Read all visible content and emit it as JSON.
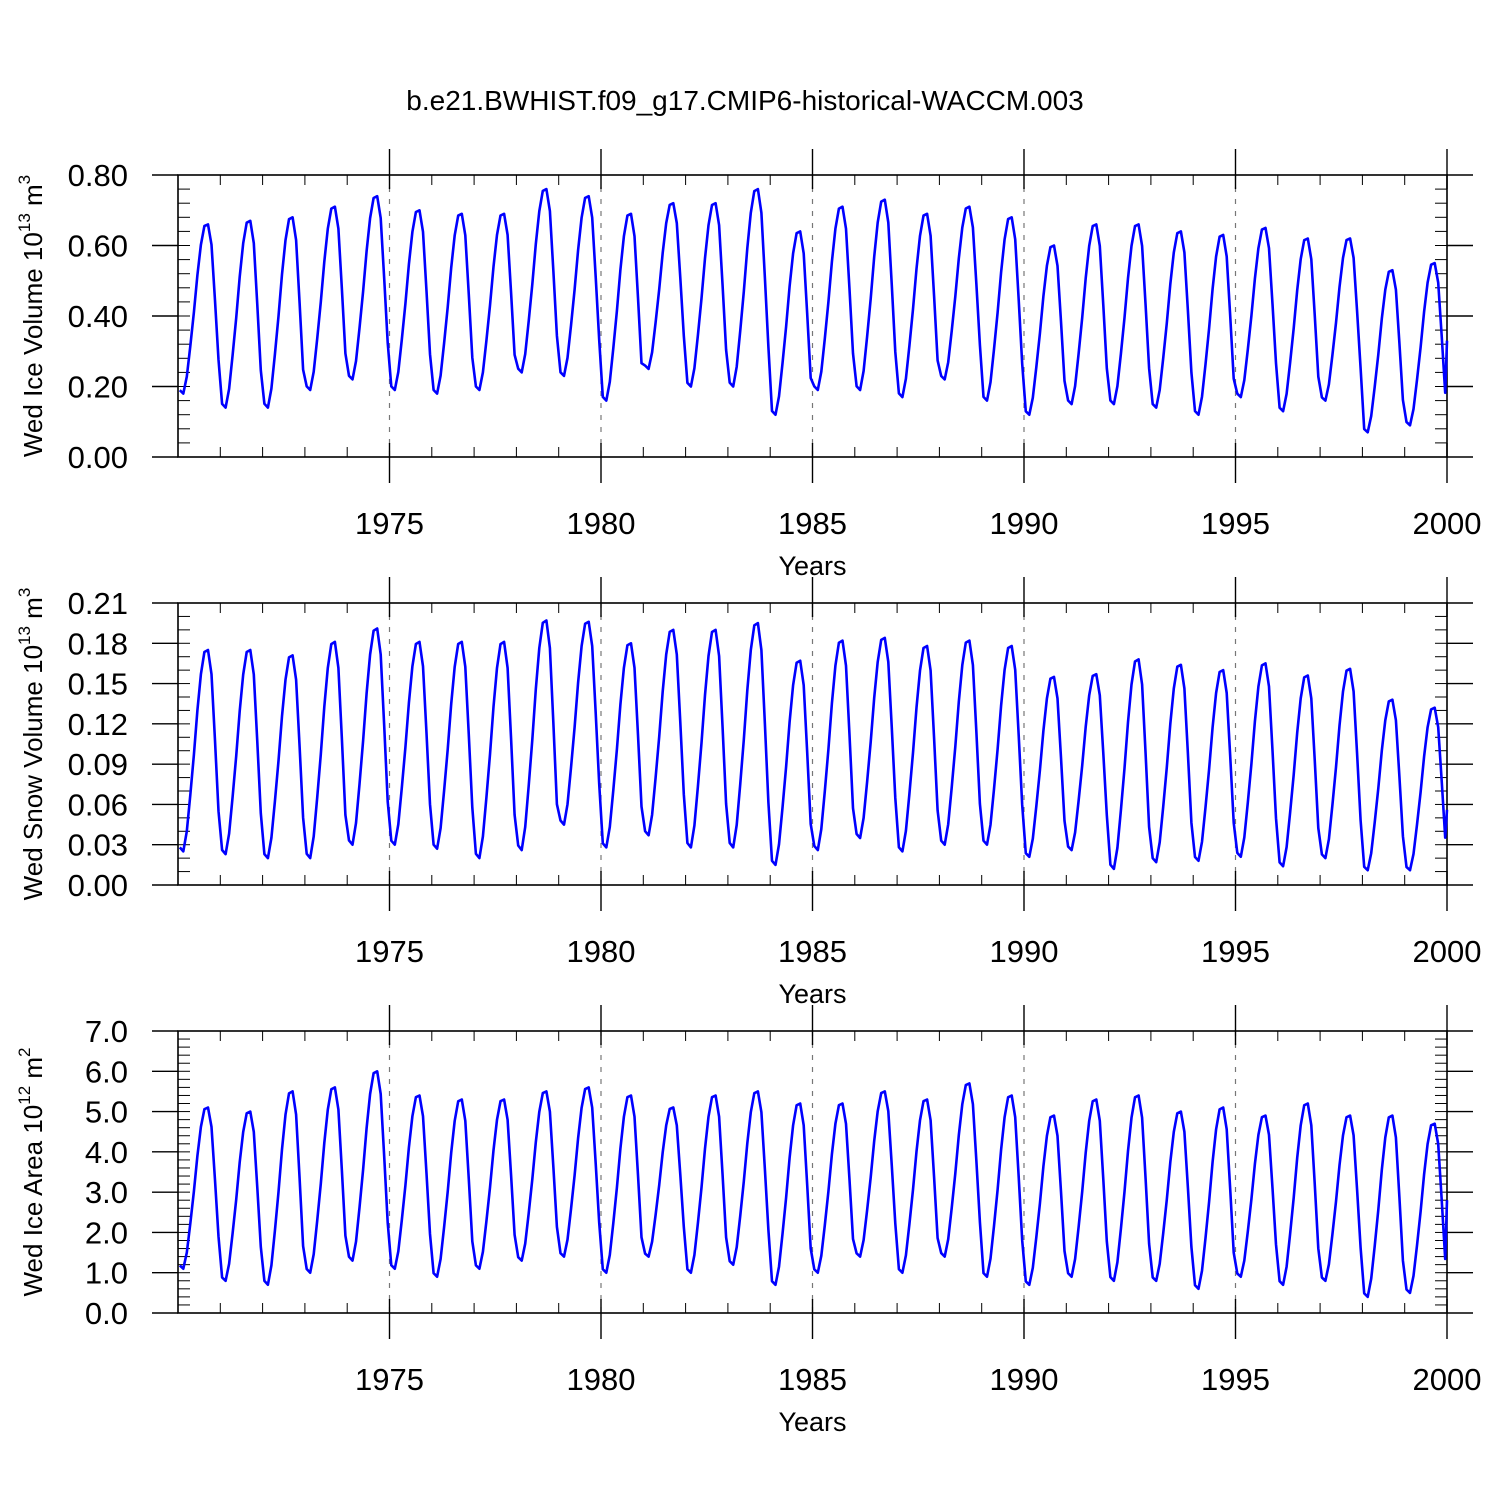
{
  "title": "b.e21.BWHIST.f09_g17.CMIP6-historical-WACCM.003",
  "chart_data": [
    {
      "type": "line",
      "ylabel": "Wed Ice Volume 10¹³ m³",
      "ylabel_main": "Wed Ice Volume 10",
      "ylabel_exp": "13",
      "ylabel_unit": " m",
      "ylabel_unit_exp": "3",
      "xlabel": "Years",
      "xlim": [
        1970.0,
        2000.0
      ],
      "ylim": [
        0.0,
        0.8
      ],
      "xticks": [
        1975,
        1980,
        1985,
        1990,
        1995,
        2000
      ],
      "xtick_labels": [
        "1975",
        "1980",
        "1985",
        "1990",
        "1995",
        "2000"
      ],
      "yticks": [
        0.0,
        0.2,
        0.4,
        0.6,
        0.8
      ],
      "ytick_labels": [
        "0.00",
        "0.20",
        "0.40",
        "0.60",
        "0.80"
      ],
      "yminor_step": 0.04,
      "series_color": "#0000ff",
      "start_year": 1970.0,
      "months_per_year": 12,
      "annual_max": [
        0.66,
        0.67,
        0.68,
        0.71,
        0.74,
        0.7,
        0.69,
        0.69,
        0.76,
        0.74,
        0.69,
        0.72,
        0.72,
        0.76,
        0.64,
        0.71,
        0.73,
        0.69,
        0.71,
        0.68,
        0.6,
        0.66,
        0.66,
        0.64,
        0.63,
        0.65,
        0.62,
        0.62,
        0.53,
        0.55
      ],
      "annual_min": [
        0.18,
        0.14,
        0.14,
        0.19,
        0.22,
        0.19,
        0.18,
        0.19,
        0.24,
        0.23,
        0.16,
        0.25,
        0.2,
        0.2,
        0.12,
        0.19,
        0.19,
        0.17,
        0.22,
        0.16,
        0.12,
        0.15,
        0.15,
        0.14,
        0.12,
        0.17,
        0.13,
        0.16,
        0.07,
        0.09
      ],
      "end_value": 0.33
    },
    {
      "type": "line",
      "ylabel": "Wed Snow Volume 10¹³ m³",
      "ylabel_main": "Wed Snow Volume 10",
      "ylabel_exp": "13",
      "ylabel_unit": " m",
      "ylabel_unit_exp": "3",
      "xlabel": "Years",
      "xlim": [
        1970.0,
        2000.0
      ],
      "ylim": [
        0.0,
        0.21
      ],
      "xticks": [
        1975,
        1980,
        1985,
        1990,
        1995,
        2000
      ],
      "xtick_labels": [
        "1975",
        "1980",
        "1985",
        "1990",
        "1995",
        "2000"
      ],
      "yticks": [
        0.0,
        0.03,
        0.06,
        0.09,
        0.12,
        0.15,
        0.18,
        0.21
      ],
      "ytick_labels": [
        "0.00",
        "0.03",
        "0.06",
        "0.09",
        "0.12",
        "0.15",
        "0.18",
        "0.21"
      ],
      "yminor_step": 0.01,
      "series_color": "#0000ff",
      "start_year": 1970.0,
      "months_per_year": 12,
      "annual_max": [
        0.175,
        0.175,
        0.171,
        0.181,
        0.191,
        0.181,
        0.181,
        0.181,
        0.197,
        0.196,
        0.18,
        0.19,
        0.19,
        0.195,
        0.167,
        0.182,
        0.184,
        0.178,
        0.182,
        0.178,
        0.155,
        0.157,
        0.168,
        0.164,
        0.16,
        0.165,
        0.156,
        0.161,
        0.138,
        0.132
      ],
      "annual_min": [
        0.025,
        0.023,
        0.02,
        0.02,
        0.03,
        0.03,
        0.027,
        0.02,
        0.026,
        0.045,
        0.028,
        0.037,
        0.028,
        0.028,
        0.015,
        0.026,
        0.035,
        0.025,
        0.03,
        0.03,
        0.021,
        0.026,
        0.012,
        0.017,
        0.018,
        0.021,
        0.014,
        0.02,
        0.011,
        0.011
      ],
      "end_value": 0.056
    },
    {
      "type": "line",
      "ylabel": "Wed Ice Area 10¹² m²",
      "ylabel_main": "Wed Ice Area 10",
      "ylabel_exp": "12",
      "ylabel_unit": " m",
      "ylabel_unit_exp": "2",
      "xlabel": "Years",
      "xlim": [
        1970.0,
        2000.0
      ],
      "ylim": [
        0.0,
        7.0
      ],
      "xticks": [
        1975,
        1980,
        1985,
        1990,
        1995,
        2000
      ],
      "xtick_labels": [
        "1975",
        "1980",
        "1985",
        "1990",
        "1995",
        "2000"
      ],
      "yticks": [
        0.0,
        1.0,
        2.0,
        3.0,
        4.0,
        5.0,
        6.0,
        7.0
      ],
      "ytick_labels": [
        "0.0",
        "1.0",
        "2.0",
        "3.0",
        "4.0",
        "5.0",
        "6.0",
        "7.0"
      ],
      "yminor_step": 0.2,
      "series_color": "#0000ff",
      "start_year": 1970.0,
      "months_per_year": 12,
      "annual_max": [
        5.1,
        5.0,
        5.5,
        5.6,
        6.0,
        5.4,
        5.3,
        5.3,
        5.5,
        5.6,
        5.4,
        5.1,
        5.4,
        5.5,
        5.2,
        5.2,
        5.5,
        5.3,
        5.7,
        5.4,
        4.9,
        5.3,
        5.4,
        5.0,
        5.1,
        4.9,
        5.2,
        4.9,
        4.9,
        4.7
      ],
      "annual_min": [
        1.1,
        0.8,
        0.7,
        1.0,
        1.3,
        1.1,
        0.9,
        1.1,
        1.3,
        1.4,
        1.0,
        1.4,
        1.0,
        1.2,
        0.7,
        1.0,
        1.4,
        1.0,
        1.4,
        0.9,
        0.7,
        0.9,
        0.8,
        0.8,
        0.6,
        0.9,
        0.7,
        0.8,
        0.4,
        0.5
      ],
      "end_value": 2.8
    }
  ]
}
